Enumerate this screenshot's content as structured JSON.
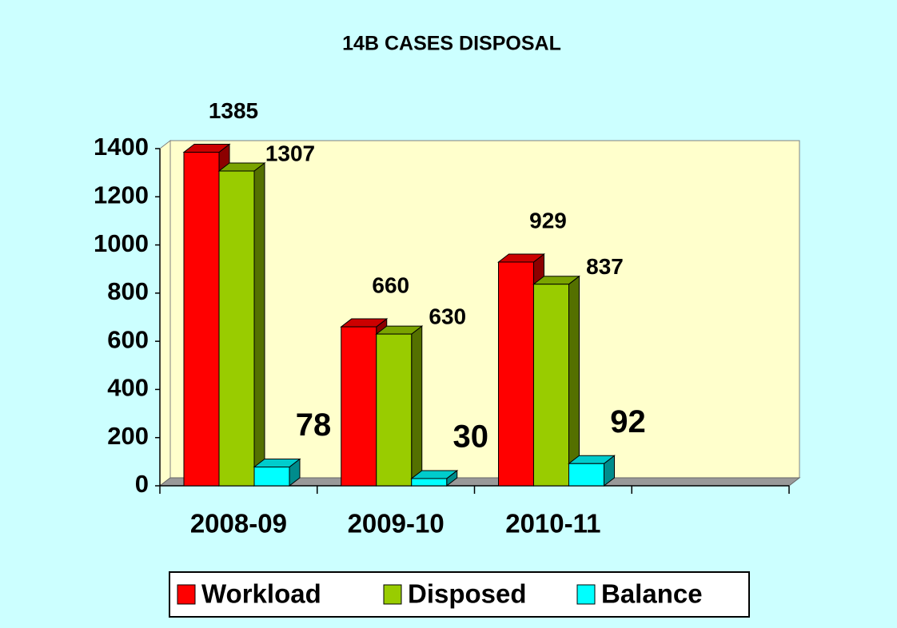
{
  "chart_data": {
    "type": "bar3d",
    "title": "14B CASES DISPOSAL",
    "categories": [
      "2008-09",
      "2009-10",
      "2010-11",
      null
    ],
    "series": [
      {
        "name": "Workload",
        "color": "#ff0000",
        "values": [
          1385,
          660,
          929,
          null
        ]
      },
      {
        "name": "Disposed",
        "color": "#99cc00",
        "values": [
          1307,
          630,
          837,
          null
        ]
      },
      {
        "name": "Balance",
        "color": "#00ffff",
        "values": [
          78,
          30,
          92,
          null
        ]
      }
    ],
    "ylim": [
      0,
      1400
    ],
    "yticks": [
      0,
      200,
      400,
      600,
      800,
      1000,
      1200,
      1400
    ],
    "legend": "bottom"
  }
}
